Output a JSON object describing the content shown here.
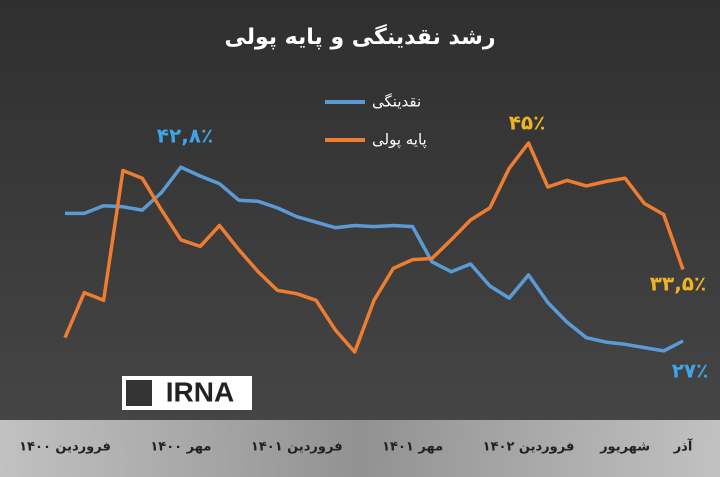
{
  "chart_data": {
    "type": "line",
    "title": "رشد نقدینگی و پایه پولی",
    "categories": [
      "فروردین ۱۴۰۰",
      null,
      null,
      null,
      null,
      null,
      "مهر ۱۴۰۰",
      null,
      null,
      null,
      null,
      null,
      "فروردین ۱۴۰۱",
      null,
      null,
      null,
      null,
      null,
      "مهر ۱۴۰۱",
      null,
      null,
      null,
      null,
      null,
      "فروردین ۱۴۰۲",
      null,
      null,
      null,
      null,
      "شهریور",
      null,
      null,
      "آذر"
    ],
    "series": [
      {
        "name": "نقدینگی",
        "color": "#5b9bd5",
        "values": [
          38.6,
          38.6,
          39.3,
          39.2,
          38.9,
          40.5,
          42.8,
          42.0,
          41.3,
          39.8,
          39.7,
          39.1,
          38.3,
          37.8,
          37.3,
          37.5,
          37.4,
          37.5,
          37.4,
          34.2,
          33.3,
          34.0,
          32.0,
          30.9,
          33.0,
          30.5,
          28.7,
          27.3,
          26.9,
          26.7,
          26.4,
          26.1,
          27
        ]
      },
      {
        "name": "پایه پولی",
        "color": "#ed7d31",
        "values": [
          27.3,
          31.4,
          30.7,
          42.5,
          41.8,
          38.9,
          36.2,
          35.6,
          37.5,
          35.3,
          33.3,
          31.6,
          31.3,
          30.7,
          28.0,
          26.0,
          30.7,
          33.6,
          34.4,
          34.5,
          36.2,
          38.0,
          39.1,
          42.7,
          45,
          41.0,
          41.6,
          41.1,
          41.5,
          41.8,
          39.5,
          38.5,
          33.5
        ]
      }
    ],
    "annotations": [
      {
        "text": "۴۲,۸٪",
        "color": "#3ea6e8"
      },
      {
        "text": "۴۵٪",
        "color": "#f0b323"
      },
      {
        "text": "۳۳,۵٪",
        "color": "#f0b323"
      },
      {
        "text": "۲۷٪",
        "color": "#3ea6e8"
      }
    ],
    "watermark": "IRNA",
    "ylim": [
      20,
      50
    ]
  }
}
